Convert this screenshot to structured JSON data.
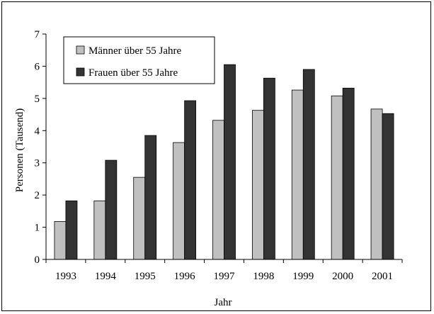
{
  "chart_data": {
    "type": "bar",
    "title": "",
    "xlabel": "Jahr",
    "ylabel": "Personen (Tausend)",
    "ylim": [
      0,
      7
    ],
    "yticks": [
      0,
      1,
      2,
      3,
      4,
      5,
      6,
      7
    ],
    "grid": false,
    "legend_position": "top-left",
    "categories": [
      "1993",
      "1994",
      "1995",
      "1996",
      "1997",
      "1998",
      "1999",
      "2000",
      "2001"
    ],
    "series": [
      {
        "name": "Männer über 55 Jahre",
        "color": "#c0c0c0",
        "values": [
          1.18,
          1.82,
          2.55,
          3.63,
          4.32,
          4.63,
          5.26,
          5.08,
          4.67
        ]
      },
      {
        "name": "Frauen über 55 Jahre",
        "color": "#333333",
        "values": [
          1.82,
          3.08,
          3.85,
          4.93,
          6.05,
          5.63,
          5.9,
          5.32,
          4.53
        ]
      }
    ]
  }
}
